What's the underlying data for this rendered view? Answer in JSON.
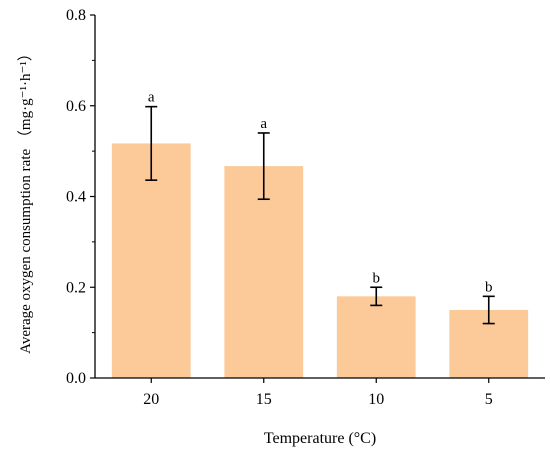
{
  "chart_data": {
    "type": "bar",
    "title": "",
    "xlabel": "Temperature (°C)",
    "ylabel": "Average oxygen consumption rate （mg·g⁻¹·h⁻¹）",
    "categories": [
      "20",
      "15",
      "10",
      "5"
    ],
    "values": [
      0.517,
      0.467,
      0.18,
      0.15
    ],
    "error": [
      0.081,
      0.073,
      0.02,
      0.03
    ],
    "significance": [
      "a",
      "a",
      "b",
      "b"
    ],
    "ylim": [
      0.0,
      0.8
    ],
    "yticks": [
      "0.0",
      "0.2",
      "0.4",
      "0.6",
      "0.8"
    ],
    "bar_color": "#fcc999",
    "error_color": "#000000",
    "grid": false,
    "legend": "none"
  }
}
